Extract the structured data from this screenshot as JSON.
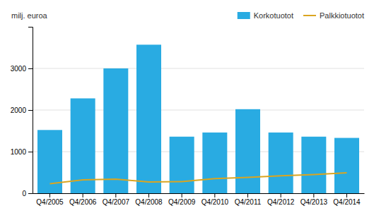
{
  "chart_data": {
    "type": "bar",
    "ylabel": "milj. euroa",
    "categories": [
      "Q4/2005",
      "Q4/2006",
      "Q4/2007",
      "Q4/2008",
      "Q4/2009",
      "Q4/2010",
      "Q4/2011",
      "Q4/2012",
      "Q4/2013",
      "Q4/2014"
    ],
    "series": [
      {
        "name": "Korkotuotot",
        "type": "bar",
        "color": "#29ABE2",
        "values": [
          1520,
          2280,
          3000,
          3570,
          1360,
          1460,
          2020,
          1460,
          1360,
          1330
        ]
      },
      {
        "name": "Palkkiotuotot",
        "type": "line",
        "color": "#DAA520",
        "values": [
          230,
          320,
          340,
          270,
          280,
          350,
          380,
          420,
          450,
          490
        ]
      }
    ],
    "ylim": [
      0,
      4000
    ],
    "yticks": [
      0,
      1000,
      2000,
      3000
    ],
    "grid": true,
    "legend": "upper right"
  }
}
